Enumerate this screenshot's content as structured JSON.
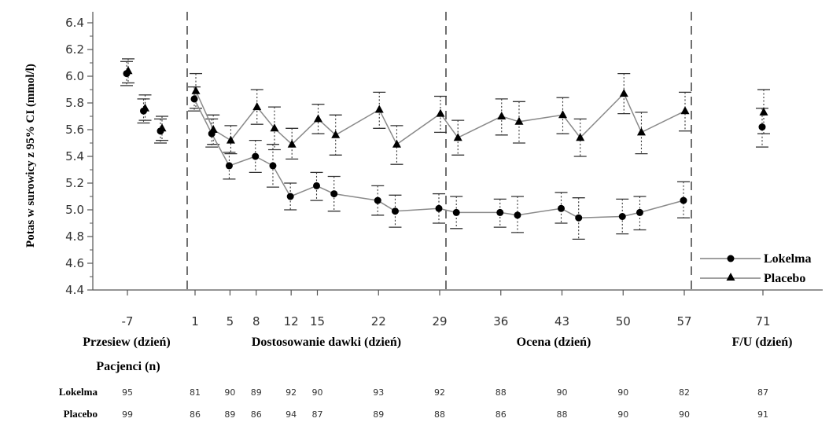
{
  "chart_data": {
    "type": "line",
    "ylabel": "Potas w surowicy z 95% CI (mmol/l)",
    "ylim": [
      4.4,
      6.4
    ],
    "yticks": [
      "4.4",
      "4.6",
      "4.8",
      "5.0",
      "5.2",
      "5.4",
      "5.6",
      "5.8",
      "6.0",
      "6.2",
      "6.4"
    ],
    "xtick_labels": [
      "-7",
      "1",
      "5",
      "8",
      "12",
      "15",
      "22",
      "29",
      "36",
      "43",
      "50",
      "57",
      "71"
    ],
    "phases": [
      "Przesiew (dzień)",
      "Dostosowanie dawki (dzień)",
      "Ocena (dzień)",
      "F/U (dzień)"
    ],
    "legend_position": "bottom-right",
    "dashed_dividers": true,
    "series": [
      {
        "name": "Lokelma",
        "marker": "circle",
        "points": [
          {
            "segment": "screening",
            "x": -7,
            "y": 6.02,
            "lo": 5.93,
            "hi": 6.11
          },
          {
            "segment": "screening",
            "x": -6,
            "y": 5.74,
            "lo": 5.65,
            "hi": 5.83
          },
          {
            "segment": "screening",
            "x": -5,
            "y": 5.59,
            "lo": 5.5,
            "hi": 5.68
          },
          {
            "segment": "main",
            "x": 1,
            "y": 5.83,
            "lo": 5.74,
            "hi": 5.92
          },
          {
            "segment": "main",
            "x": 3,
            "y": 5.57,
            "lo": 5.47,
            "hi": 5.68
          },
          {
            "segment": "main",
            "x": 5,
            "y": 5.33,
            "lo": 5.23,
            "hi": 5.43
          },
          {
            "segment": "main",
            "x": 8,
            "y": 5.4,
            "lo": 5.28,
            "hi": 5.52
          },
          {
            "segment": "main",
            "x": 10,
            "y": 5.33,
            "lo": 5.17,
            "hi": 5.49
          },
          {
            "segment": "main",
            "x": 12,
            "y": 5.1,
            "lo": 5.0,
            "hi": 5.2
          },
          {
            "segment": "main",
            "x": 15,
            "y": 5.18,
            "lo": 5.07,
            "hi": 5.28
          },
          {
            "segment": "main",
            "x": 17,
            "y": 5.12,
            "lo": 4.99,
            "hi": 5.25
          },
          {
            "segment": "main",
            "x": 22,
            "y": 5.07,
            "lo": 4.96,
            "hi": 5.18
          },
          {
            "segment": "main",
            "x": 24,
            "y": 4.99,
            "lo": 4.87,
            "hi": 5.11
          },
          {
            "segment": "main",
            "x": 29,
            "y": 5.01,
            "lo": 4.9,
            "hi": 5.12
          },
          {
            "segment": "main",
            "x": 31,
            "y": 4.98,
            "lo": 4.86,
            "hi": 5.1
          },
          {
            "segment": "main",
            "x": 36,
            "y": 4.98,
            "lo": 4.87,
            "hi": 5.08
          },
          {
            "segment": "main",
            "x": 38,
            "y": 4.96,
            "lo": 4.83,
            "hi": 5.1
          },
          {
            "segment": "main",
            "x": 43,
            "y": 5.01,
            "lo": 4.9,
            "hi": 5.13
          },
          {
            "segment": "main",
            "x": 45,
            "y": 4.94,
            "lo": 4.78,
            "hi": 5.09
          },
          {
            "segment": "main",
            "x": 50,
            "y": 4.95,
            "lo": 4.82,
            "hi": 5.08
          },
          {
            "segment": "main",
            "x": 52,
            "y": 4.98,
            "lo": 4.85,
            "hi": 5.1
          },
          {
            "segment": "main",
            "x": 57,
            "y": 5.07,
            "lo": 4.94,
            "hi": 5.21
          },
          {
            "segment": "followup",
            "x": 71,
            "y": 5.62,
            "lo": 5.47,
            "hi": 5.76
          }
        ]
      },
      {
        "name": "Placebo",
        "marker": "triangle",
        "points": [
          {
            "segment": "screening",
            "x": -7,
            "y": 6.04,
            "lo": 5.95,
            "hi": 6.13
          },
          {
            "segment": "screening",
            "x": -6,
            "y": 5.76,
            "lo": 5.67,
            "hi": 5.86
          },
          {
            "segment": "screening",
            "x": -5,
            "y": 5.61,
            "lo": 5.52,
            "hi": 5.7
          },
          {
            "segment": "main",
            "x": 1,
            "y": 5.89,
            "lo": 5.76,
            "hi": 6.02
          },
          {
            "segment": "main",
            "x": 3,
            "y": 5.6,
            "lo": 5.49,
            "hi": 5.71
          },
          {
            "segment": "main",
            "x": 5,
            "y": 5.52,
            "lo": 5.42,
            "hi": 5.63
          },
          {
            "segment": "main",
            "x": 8,
            "y": 5.77,
            "lo": 5.64,
            "hi": 5.9
          },
          {
            "segment": "main",
            "x": 10,
            "y": 5.61,
            "lo": 5.45,
            "hi": 5.77
          },
          {
            "segment": "main",
            "x": 12,
            "y": 5.49,
            "lo": 5.38,
            "hi": 5.61
          },
          {
            "segment": "main",
            "x": 15,
            "y": 5.68,
            "lo": 5.57,
            "hi": 5.79
          },
          {
            "segment": "main",
            "x": 17,
            "y": 5.56,
            "lo": 5.41,
            "hi": 5.71
          },
          {
            "segment": "main",
            "x": 22,
            "y": 5.75,
            "lo": 5.61,
            "hi": 5.88
          },
          {
            "segment": "main",
            "x": 24,
            "y": 5.49,
            "lo": 5.34,
            "hi": 5.63
          },
          {
            "segment": "main",
            "x": 29,
            "y": 5.72,
            "lo": 5.58,
            "hi": 5.85
          },
          {
            "segment": "main",
            "x": 31,
            "y": 5.54,
            "lo": 5.41,
            "hi": 5.67
          },
          {
            "segment": "main",
            "x": 36,
            "y": 5.7,
            "lo": 5.56,
            "hi": 5.83
          },
          {
            "segment": "main",
            "x": 38,
            "y": 5.66,
            "lo": 5.5,
            "hi": 5.81
          },
          {
            "segment": "main",
            "x": 43,
            "y": 5.71,
            "lo": 5.57,
            "hi": 5.84
          },
          {
            "segment": "main",
            "x": 45,
            "y": 5.54,
            "lo": 5.4,
            "hi": 5.68
          },
          {
            "segment": "main",
            "x": 50,
            "y": 5.87,
            "lo": 5.72,
            "hi": 6.02
          },
          {
            "segment": "main",
            "x": 52,
            "y": 5.58,
            "lo": 5.42,
            "hi": 5.73
          },
          {
            "segment": "main",
            "x": 57,
            "y": 5.74,
            "lo": 5.59,
            "hi": 5.88
          },
          {
            "segment": "followup",
            "x": 71,
            "y": 5.73,
            "lo": 5.57,
            "hi": 5.9
          }
        ]
      }
    ]
  },
  "patients": {
    "title": "Pacjenci (n)",
    "rows": [
      {
        "label": "Lokelma",
        "counts": [
          "95",
          "81",
          "90",
          "89",
          "92",
          "90",
          "93",
          "92",
          "88",
          "90",
          "90",
          "82",
          "87"
        ]
      },
      {
        "label": "Placebo",
        "counts": [
          "99",
          "86",
          "89",
          "86",
          "94",
          "87",
          "89",
          "88",
          "86",
          "88",
          "90",
          "90",
          "91"
        ]
      }
    ]
  }
}
